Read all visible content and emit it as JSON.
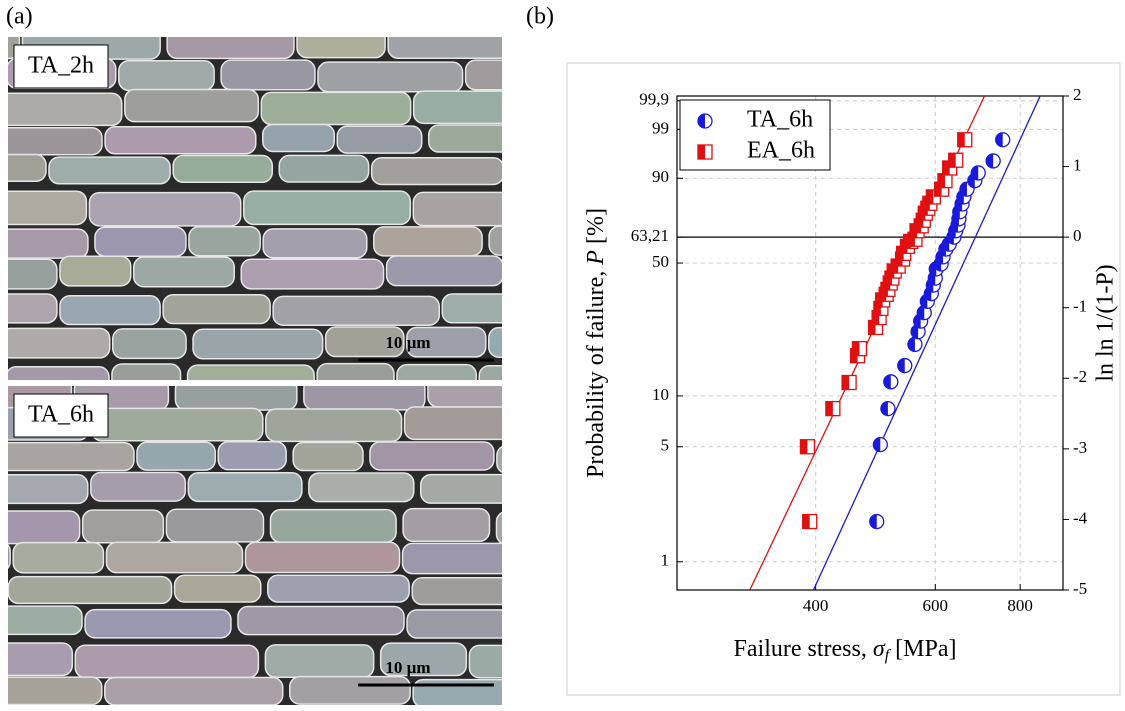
{
  "panel_labels": [
    "(a)",
    "(b)"
  ],
  "micrographs": [
    {
      "tag": "TA_2h",
      "scale_bar": "10 µm"
    },
    {
      "tag": "TA_6h",
      "scale_bar": "10 µm"
    }
  ],
  "chart_data": {
    "type": "scatter",
    "x_label": {
      "text": "Failure stress, ",
      "symbol": "σ",
      "subscript": "f",
      "unit": "[MPa]"
    },
    "y_label": {
      "text": "Probability of failure, ",
      "symbol": "P",
      "unit": "[%]"
    },
    "y2_label": "ln ln 1/(1-P)",
    "xscale": "log",
    "xlim": [
      250,
      925
    ],
    "xticks": [
      400,
      600,
      800
    ],
    "ylim": [
      -5,
      2
    ],
    "yticks": [
      -5,
      -4,
      -3,
      -2,
      -1,
      0,
      1,
      2
    ],
    "left_yticks": [
      {
        "value": 1.933,
        "label": "99,9"
      },
      {
        "value": 1.527,
        "label": "99"
      },
      {
        "value": 0.834,
        "label": "90"
      },
      {
        "value": 0,
        "label": "63,21"
      },
      {
        "value": -0.367,
        "label": "50"
      },
      {
        "value": -2.25,
        "label": "10"
      },
      {
        "value": -2.97,
        "label": "5"
      },
      {
        "value": -4.6,
        "label": "1"
      }
    ],
    "reference_line": 0,
    "legend": "top-left",
    "series": [
      {
        "name": "TA_6h",
        "color": "#1a1adb",
        "marker": "circle",
        "x": [
          492,
          498,
          511,
          516,
          541,
          560,
          566,
          571,
          578,
          584,
          592,
          596,
          600,
          602,
          612,
          616,
          622,
          629,
          639,
          643,
          648,
          650,
          652,
          657,
          661,
          668,
          686,
          694,
          730,
          754
        ],
        "values": [
          -4.03,
          -2.94,
          -2.43,
          -2.05,
          -1.82,
          -1.52,
          -1.34,
          -1.19,
          -1.07,
          -0.91,
          -0.8,
          -0.68,
          -0.58,
          -0.45,
          -0.38,
          -0.28,
          -0.17,
          -0.1,
          0,
          0.09,
          0.17,
          0.26,
          0.36,
          0.47,
          0.57,
          0.68,
          0.8,
          0.91,
          1.08,
          1.38
        ],
        "fit": {
          "x": [
            397,
            856
          ],
          "y": [
            -5,
            2
          ]
        }
      },
      {
        "name": "EA_6h",
        "color": "#e01010",
        "marker": "square",
        "x": [
          392,
          389,
          424,
          448,
          461,
          464,
          490,
          496,
          499,
          502,
          508,
          511,
          515,
          518,
          522,
          529,
          537,
          539,
          546,
          552,
          560,
          564,
          572,
          576,
          580,
          585,
          589,
          596,
          613,
          620,
          630,
          643,
          663
        ],
        "values": [
          -4.03,
          -2.97,
          -2.43,
          -2.06,
          -1.68,
          -1.58,
          -1.28,
          -1.14,
          -1.01,
          -0.89,
          -0.81,
          -0.74,
          -0.65,
          -0.58,
          -0.48,
          -0.41,
          -0.31,
          -0.23,
          -0.13,
          -0.06,
          -0.03,
          0.09,
          0.16,
          0.24,
          0.34,
          0.41,
          0.48,
          0.57,
          0.68,
          0.8,
          0.98,
          1.09,
          1.38
        ],
        "fit": {
          "x": [
            320,
            709
          ],
          "y": [
            -5,
            2
          ]
        }
      }
    ]
  }
}
